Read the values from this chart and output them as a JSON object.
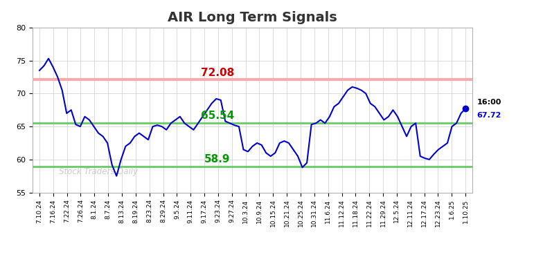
{
  "title": "AIR Long Term Signals",
  "title_fontsize": 14,
  "title_fontweight": "bold",
  "title_color": "#333333",
  "background_color": "#ffffff",
  "grid_color": "#cccccc",
  "line_color": "#0000cc",
  "line_width": 1.5,
  "red_line": 72.08,
  "red_line_color": "#ffaaaa",
  "green_line_upper": 65.54,
  "green_line_lower": 58.9,
  "green_line_color": "#66cc66",
  "annotation_red_text": "72.08",
  "annotation_red_color": "#cc0000",
  "annotation_green_upper_text": "65.54",
  "annotation_green_lower_text": "58.9",
  "annotation_green_color": "#009900",
  "last_label": "16:00",
  "last_value": "67.72",
  "last_value_color": "#0000cc",
  "last_label_color": "#000000",
  "watermark": "Stock Traders Daily",
  "watermark_color": "#cccccc",
  "ylim": [
    55,
    80
  ],
  "yticks": [
    55,
    60,
    65,
    70,
    75,
    80
  ],
  "x_labels": [
    "7.10.24",
    "7.16.24",
    "7.22.24",
    "7.26.24",
    "8.1.24",
    "8.7.24",
    "8.13.24",
    "8.19.24",
    "8.23.24",
    "8.29.24",
    "9.5.24",
    "9.11.24",
    "9.17.24",
    "9.23.24",
    "9.27.24",
    "10.3.24",
    "10.9.24",
    "10.15.24",
    "10.21.24",
    "10.25.24",
    "10.31.24",
    "11.6.24",
    "11.12.24",
    "11.18.24",
    "11.22.24",
    "11.29.24",
    "12.5.24",
    "12.11.24",
    "12.17.24",
    "12.23.24",
    "1.6.25",
    "1.10.25"
  ],
  "y_values": [
    73.5,
    74.2,
    75.3,
    74.0,
    72.5,
    70.5,
    67.0,
    67.5,
    65.3,
    65.0,
    66.5,
    66.0,
    65.0,
    64.0,
    63.5,
    62.5,
    59.2,
    57.5,
    60.0,
    62.0,
    62.5,
    63.5,
    64.0,
    63.5,
    63.0,
    65.0,
    65.2,
    65.0,
    64.5,
    65.5,
    66.0,
    66.5,
    65.5,
    65.0,
    64.5,
    65.5,
    66.5,
    67.5,
    68.5,
    69.2,
    69.0,
    65.8,
    65.5,
    65.2,
    65.0,
    61.5,
    61.2,
    62.0,
    62.5,
    62.2,
    61.0,
    60.5,
    61.0,
    62.5,
    62.8,
    62.5,
    61.5,
    60.5,
    58.8,
    59.5,
    65.3,
    65.5,
    66.0,
    65.5,
    66.5,
    68.0,
    68.5,
    69.5,
    70.5,
    71.0,
    70.8,
    70.5,
    70.0,
    68.5,
    68.0,
    67.0,
    66.0,
    66.5,
    67.5,
    66.5,
    65.0,
    63.5,
    65.0,
    65.5,
    60.5,
    60.2,
    60.0,
    60.8,
    61.5,
    62.0,
    62.5,
    65.0,
    65.5,
    67.0,
    67.72
  ]
}
